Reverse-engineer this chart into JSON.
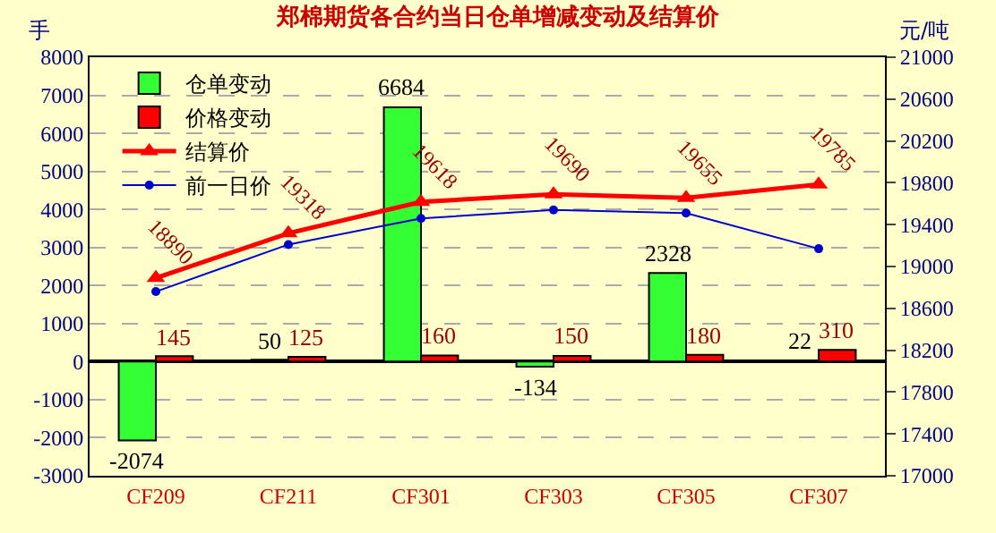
{
  "chart_data": {
    "type": "bar",
    "title": "郑棉期货各合约当日仓单增减变动及结算价",
    "ylabel": "手",
    "y2label": "元/吨",
    "categories": [
      "CF209",
      "CF211",
      "CF301",
      "CF303",
      "CF305",
      "CF307"
    ],
    "series": [
      {
        "name": "仓单变动",
        "color": "#33ff33",
        "values": [
          -2074,
          50,
          6684,
          -134,
          2328,
          22
        ],
        "value_labels": [
          "-2074",
          "50",
          "6684",
          "-134",
          "2328",
          "22"
        ]
      },
      {
        "name": "价格变动",
        "color": "#ff0000",
        "values": [
          145,
          125,
          160,
          150,
          180,
          310
        ],
        "value_labels": [
          "145",
          "125",
          "160",
          "150",
          "180",
          "310"
        ]
      },
      {
        "name": "结算价",
        "type": "line",
        "axis": "y2",
        "color": "#ff0000",
        "marker": "triangle",
        "values": [
          18890,
          19318,
          19618,
          19690,
          19655,
          19785
        ],
        "value_labels": [
          "18890",
          "19318",
          "19618",
          "19690",
          "19655",
          "19785"
        ]
      },
      {
        "name": "前一日价",
        "type": "line",
        "axis": "y2",
        "color": "#0000cc",
        "marker": "circle",
        "values": [
          18760,
          19210,
          19460,
          19540,
          19510,
          19170
        ]
      }
    ],
    "ylim": [
      -3000,
      8000
    ],
    "yticks": [
      -3000,
      -2000,
      -1000,
      0,
      1000,
      2000,
      3000,
      4000,
      5000,
      6000,
      7000,
      8000
    ],
    "y2lim": [
      17000,
      21000
    ],
    "y2ticks": [
      17000,
      17400,
      17800,
      18200,
      18600,
      19000,
      19400,
      19800,
      20200,
      20600,
      21000
    ],
    "grid": "y",
    "legend": "top left"
  }
}
